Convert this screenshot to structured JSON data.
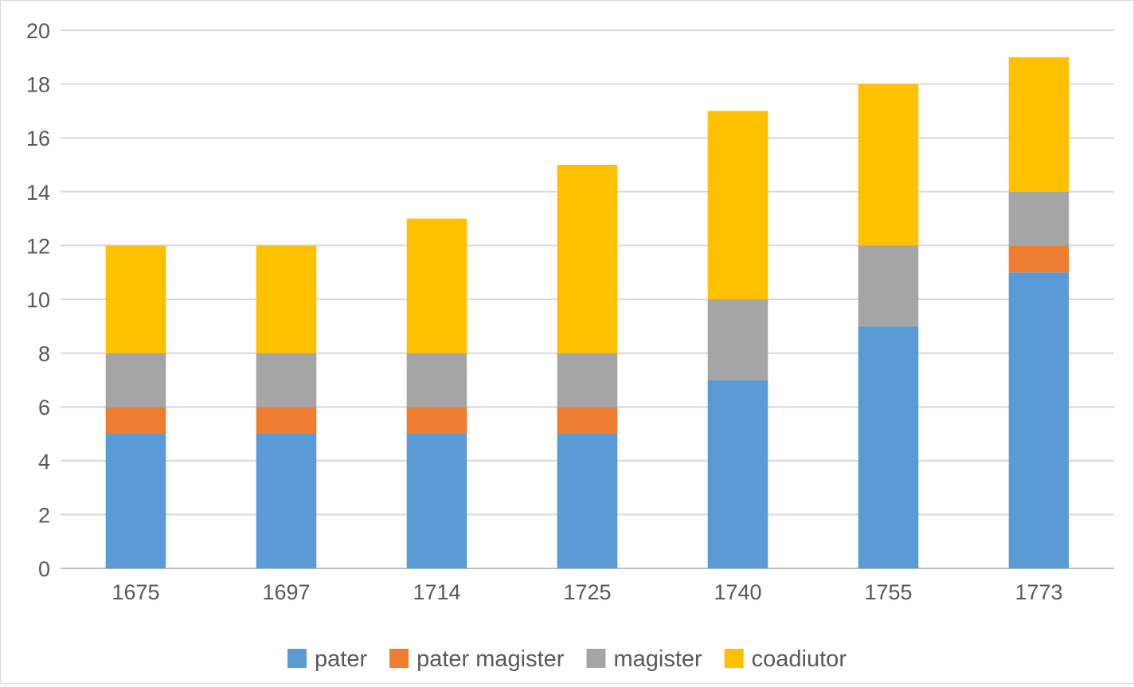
{
  "chart_data": {
    "type": "bar",
    "stacked": true,
    "title": "",
    "xlabel": "",
    "ylabel": "",
    "categories": [
      "1675",
      "1697",
      "1714",
      "1725",
      "1740",
      "1755",
      "1773"
    ],
    "series": [
      {
        "name": "pater",
        "color": "#5b9bd5",
        "values": [
          5,
          5,
          5,
          5,
          7,
          9,
          11
        ]
      },
      {
        "name": "pater magister",
        "color": "#ed7d31",
        "values": [
          1,
          1,
          1,
          1,
          0,
          0,
          1
        ]
      },
      {
        "name": "magister",
        "color": "#a5a5a5",
        "values": [
          2,
          2,
          2,
          2,
          3,
          3,
          2
        ]
      },
      {
        "name": "coadiutor",
        "color": "#ffc000",
        "values": [
          4,
          4,
          5,
          7,
          7,
          6,
          5
        ]
      }
    ],
    "ylim": [
      0,
      20
    ],
    "yticks": [
      "0",
      "2",
      "4",
      "6",
      "8",
      "10",
      "12",
      "14",
      "16",
      "18",
      "20"
    ],
    "grid": true,
    "legend_position": "bottom"
  }
}
